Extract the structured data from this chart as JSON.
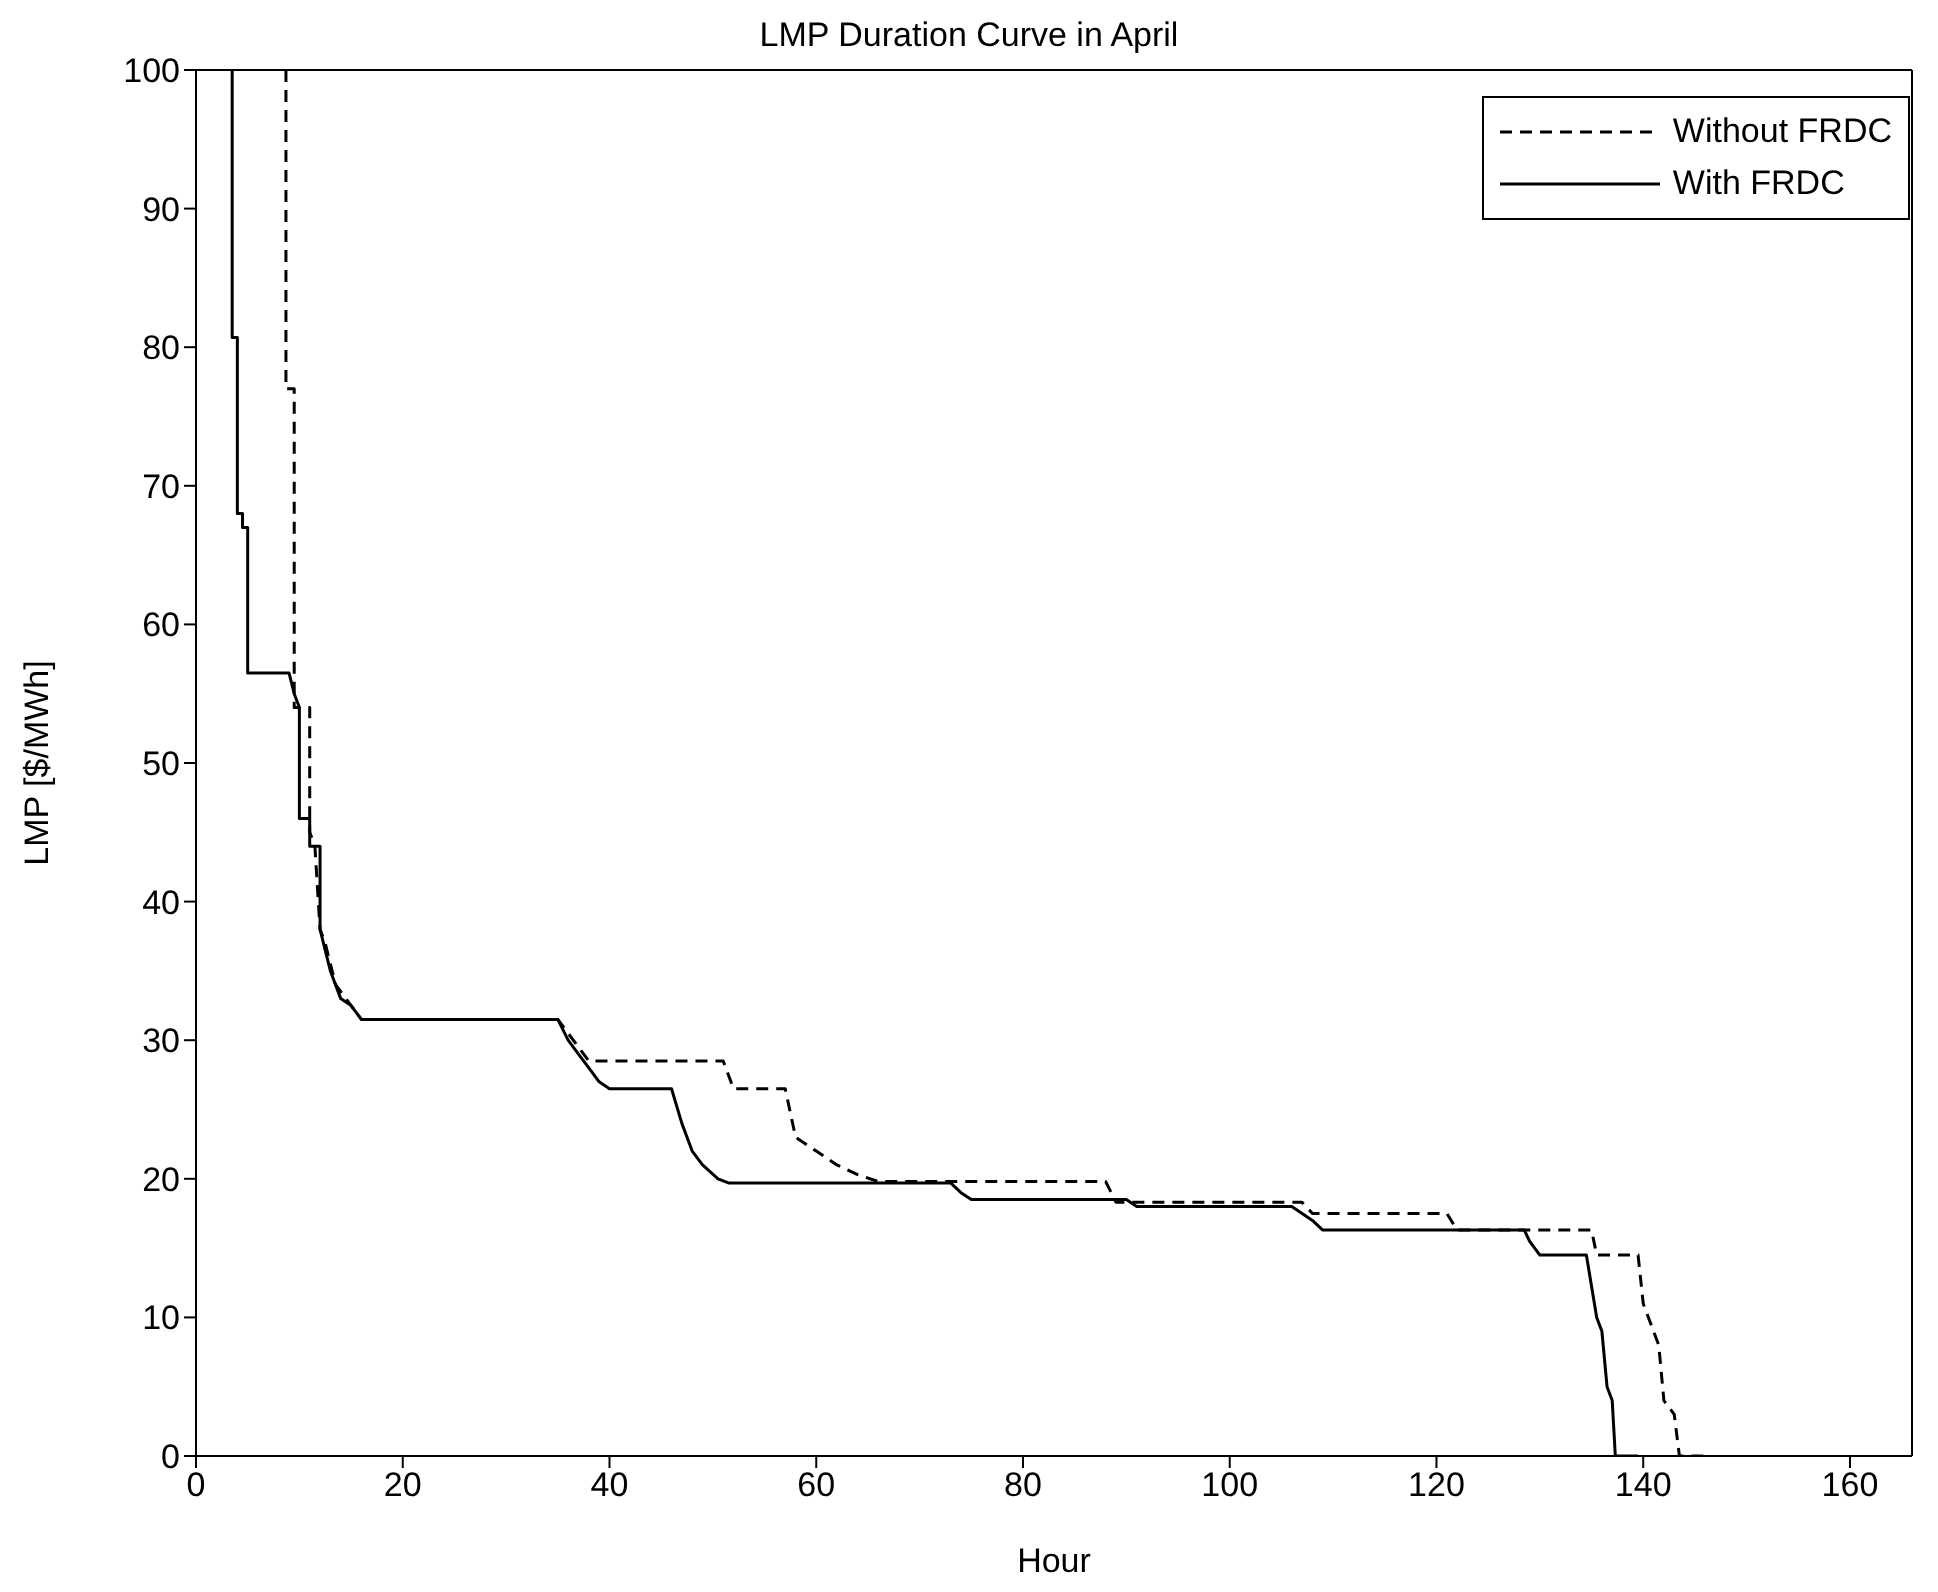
{
  "chart_data": {
    "type": "line",
    "title": "LMP Duration Curve in April",
    "xlabel": "Hour",
    "ylabel": "LMP [$/MWh]",
    "xlim": [
      0,
      166
    ],
    "xticks": [
      0,
      20,
      40,
      60,
      80,
      100,
      120,
      140,
      160
    ],
    "ylim": [
      0,
      100
    ],
    "yticks": [
      0,
      10,
      20,
      30,
      40,
      50,
      60,
      70,
      80,
      90,
      100
    ],
    "grid": false,
    "legend": "top right",
    "series": [
      {
        "name": "Without FRDC",
        "color": "#000000",
        "line_style": "dashed",
        "x": [
          8.7,
          8.7,
          9.5,
          9.5,
          11,
          11,
          11.5,
          12,
          12.5,
          13.5,
          14.5,
          16,
          35,
          36,
          37,
          38,
          51,
          52,
          57,
          58,
          60,
          62,
          64,
          66,
          88,
          89,
          107,
          108,
          121,
          122,
          135,
          135.5,
          139.5,
          140,
          140.5,
          141.5,
          142,
          143,
          143.5,
          146
        ],
        "values": [
          100,
          77,
          77,
          54,
          54,
          45,
          44,
          38,
          37,
          34,
          33,
          31.5,
          31.5,
          30.5,
          29.5,
          28.5,
          28.5,
          26.5,
          26.5,
          23,
          22,
          21,
          20.3,
          19.8,
          19.8,
          18.3,
          18.3,
          17.5,
          17.5,
          16.3,
          16.3,
          14.5,
          14.5,
          11,
          10,
          8,
          4,
          3,
          0,
          0
        ]
      },
      {
        "name": "With FRDC",
        "color": "#000000",
        "line_style": "solid",
        "x": [
          3.5,
          3.5,
          4,
          4,
          4.5,
          4.5,
          5,
          5,
          9,
          9.5,
          10,
          10,
          11,
          11,
          12,
          12,
          13,
          14,
          15,
          16,
          35,
          36,
          37,
          38,
          39,
          40,
          46,
          47,
          48,
          49,
          50.5,
          51.5,
          73,
          74,
          75,
          90,
          91,
          106,
          107,
          108,
          109,
          128.5,
          129,
          130,
          134.5,
          135.5,
          136,
          136.5,
          137,
          137.3,
          139.5
        ],
        "values": [
          100,
          80.7,
          80.7,
          68,
          68,
          67,
          67,
          56.5,
          56.5,
          55,
          54,
          46,
          46,
          44,
          44,
          38,
          35,
          33,
          32.5,
          31.5,
          31.5,
          30,
          29,
          28,
          27,
          26.5,
          26.5,
          24,
          22,
          21,
          20,
          19.7,
          19.7,
          19,
          18.5,
          18.5,
          18,
          18,
          17.5,
          17,
          16.3,
          16.3,
          15.5,
          14.5,
          14.5,
          10,
          9,
          5,
          4,
          0,
          0
        ]
      }
    ]
  }
}
